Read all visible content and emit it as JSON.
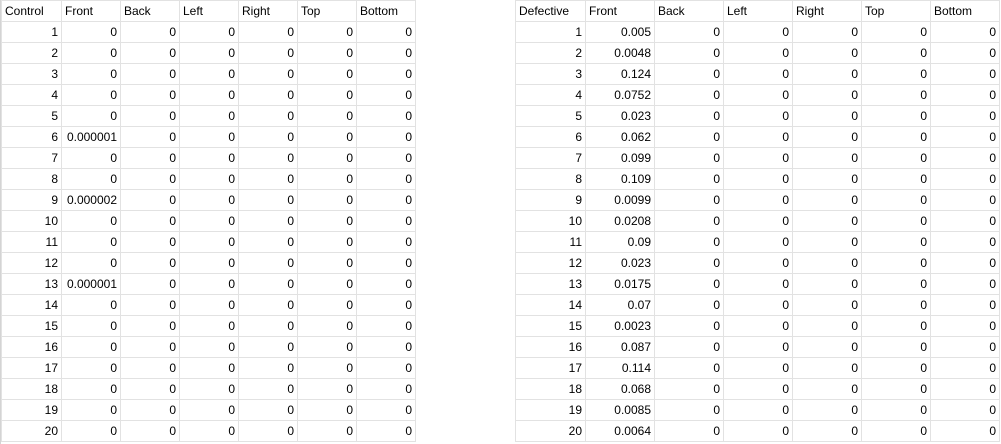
{
  "control_table": {
    "headers": [
      "Control",
      "Front",
      "Back",
      "Left",
      "Right",
      "Top",
      "Bottom"
    ],
    "rows": [
      [
        "1",
        "0",
        "0",
        "0",
        "0",
        "0",
        "0"
      ],
      [
        "2",
        "0",
        "0",
        "0",
        "0",
        "0",
        "0"
      ],
      [
        "3",
        "0",
        "0",
        "0",
        "0",
        "0",
        "0"
      ],
      [
        "4",
        "0",
        "0",
        "0",
        "0",
        "0",
        "0"
      ],
      [
        "5",
        "0",
        "0",
        "0",
        "0",
        "0",
        "0"
      ],
      [
        "6",
        "0.000001",
        "0",
        "0",
        "0",
        "0",
        "0"
      ],
      [
        "7",
        "0",
        "0",
        "0",
        "0",
        "0",
        "0"
      ],
      [
        "8",
        "0",
        "0",
        "0",
        "0",
        "0",
        "0"
      ],
      [
        "9",
        "0.000002",
        "0",
        "0",
        "0",
        "0",
        "0"
      ],
      [
        "10",
        "0",
        "0",
        "0",
        "0",
        "0",
        "0"
      ],
      [
        "11",
        "0",
        "0",
        "0",
        "0",
        "0",
        "0"
      ],
      [
        "12",
        "0",
        "0",
        "0",
        "0",
        "0",
        "0"
      ],
      [
        "13",
        "0.000001",
        "0",
        "0",
        "0",
        "0",
        "0"
      ],
      [
        "14",
        "0",
        "0",
        "0",
        "0",
        "0",
        "0"
      ],
      [
        "15",
        "0",
        "0",
        "0",
        "0",
        "0",
        "0"
      ],
      [
        "16",
        "0",
        "0",
        "0",
        "0",
        "0",
        "0"
      ],
      [
        "17",
        "0",
        "0",
        "0",
        "0",
        "0",
        "0"
      ],
      [
        "18",
        "0",
        "0",
        "0",
        "0",
        "0",
        "0"
      ],
      [
        "19",
        "0",
        "0",
        "0",
        "0",
        "0",
        "0"
      ],
      [
        "20",
        "0",
        "0",
        "0",
        "0",
        "0",
        "0"
      ]
    ]
  },
  "defective_table": {
    "headers": [
      "Defective",
      "Front",
      "Back",
      "Left",
      "Right",
      "Top",
      "Bottom"
    ],
    "rows": [
      [
        "1",
        "0.005",
        "0",
        "0",
        "0",
        "0",
        "0"
      ],
      [
        "2",
        "0.0048",
        "0",
        "0",
        "0",
        "0",
        "0"
      ],
      [
        "3",
        "0.124",
        "0",
        "0",
        "0",
        "0",
        "0"
      ],
      [
        "4",
        "0.0752",
        "0",
        "0",
        "0",
        "0",
        "0"
      ],
      [
        "5",
        "0.023",
        "0",
        "0",
        "0",
        "0",
        "0"
      ],
      [
        "6",
        "0.062",
        "0",
        "0",
        "0",
        "0",
        "0"
      ],
      [
        "7",
        "0.099",
        "0",
        "0",
        "0",
        "0",
        "0"
      ],
      [
        "8",
        "0.109",
        "0",
        "0",
        "0",
        "0",
        "0"
      ],
      [
        "9",
        "0.0099",
        "0",
        "0",
        "0",
        "0",
        "0"
      ],
      [
        "10",
        "0.0208",
        "0",
        "0",
        "0",
        "0",
        "0"
      ],
      [
        "11",
        "0.09",
        "0",
        "0",
        "0",
        "0",
        "0"
      ],
      [
        "12",
        "0.023",
        "0",
        "0",
        "0",
        "0",
        "0"
      ],
      [
        "13",
        "0.0175",
        "0",
        "0",
        "0",
        "0",
        "0"
      ],
      [
        "14",
        "0.07",
        "0",
        "0",
        "0",
        "0",
        "0"
      ],
      [
        "15",
        "0.0023",
        "0",
        "0",
        "0",
        "0",
        "0"
      ],
      [
        "16",
        "0.087",
        "0",
        "0",
        "0",
        "0",
        "0"
      ],
      [
        "17",
        "0.114",
        "0",
        "0",
        "0",
        "0",
        "0"
      ],
      [
        "18",
        "0.068",
        "0",
        "0",
        "0",
        "0",
        "0"
      ],
      [
        "19",
        "0.0085",
        "0",
        "0",
        "0",
        "0",
        "0"
      ],
      [
        "20",
        "0.0064",
        "0",
        "0",
        "0",
        "0",
        "0"
      ]
    ]
  }
}
